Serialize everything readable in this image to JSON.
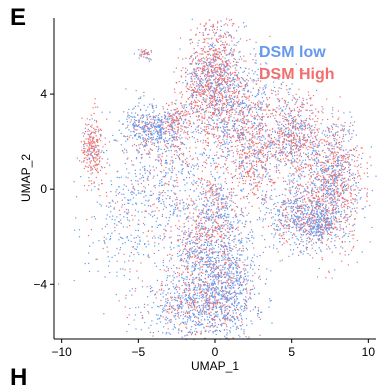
{
  "panel_label": "E",
  "next_panel_label_fragment": "H",
  "colors": {
    "low": "#6699ee",
    "high": "#f07070"
  },
  "chart_data": {
    "type": "scatter",
    "title": "",
    "xlabel": "UMAP_1",
    "ylabel": "UMAP_2",
    "xlim": [
      -10.5,
      10.5
    ],
    "ylim": [
      -6.3,
      7.2
    ],
    "xticks": [
      -10,
      -5,
      0,
      5,
      10
    ],
    "yticks": [
      -4,
      0,
      4
    ],
    "xtick_labels": [
      "−10",
      "−5",
      "0",
      "5",
      "10"
    ],
    "ytick_labels": [
      "−4",
      "0",
      "4"
    ],
    "grid": false,
    "legend_position": "top-right",
    "series": [
      {
        "name": "DSM low",
        "color": "#6699ee"
      },
      {
        "name": "DSM High",
        "color": "#f07070"
      }
    ],
    "clusters": [
      {
        "cx": -8.0,
        "cy": 1.8,
        "sx": 0.35,
        "sy": 0.7,
        "n": 260,
        "mix": 0.85
      },
      {
        "cx": -4.3,
        "cy": 2.6,
        "sx": 0.9,
        "sy": 0.45,
        "n": 400,
        "mix": 0.2
      },
      {
        "cx": -2.6,
        "cy": 2.8,
        "sx": 0.5,
        "sy": 0.5,
        "n": 160,
        "mix": 0.8
      },
      {
        "cx": -4.6,
        "cy": 5.7,
        "sx": 0.25,
        "sy": 0.12,
        "n": 40,
        "mix": 0.5
      },
      {
        "cx": -5.5,
        "cy": -1.2,
        "sx": 1.6,
        "sy": 1.5,
        "n": 350,
        "mix": 0.25
      },
      {
        "cx": -3.2,
        "cy": 0.8,
        "sx": 1.3,
        "sy": 1.2,
        "n": 350,
        "mix": 0.3
      },
      {
        "cx": -1.4,
        "cy": -2.5,
        "sx": 1.0,
        "sy": 1.5,
        "n": 500,
        "mix": 0.5
      },
      {
        "cx": 0.7,
        "cy": -4.0,
        "sx": 1.1,
        "sy": 1.3,
        "n": 900,
        "mix": 0.25
      },
      {
        "cx": -1.6,
        "cy": -4.9,
        "sx": 1.6,
        "sy": 0.7,
        "n": 600,
        "mix": 0.3
      },
      {
        "cx": 0.2,
        "cy": -1.0,
        "sx": 0.8,
        "sy": 1.4,
        "n": 500,
        "mix": 0.5
      },
      {
        "cx": 0.0,
        "cy": 4.7,
        "sx": 0.8,
        "sy": 1.4,
        "n": 900,
        "mix": 0.65
      },
      {
        "cx": 1.6,
        "cy": 3.4,
        "sx": 1.2,
        "sy": 1.1,
        "n": 700,
        "mix": 0.45
      },
      {
        "cx": -1.2,
        "cy": 4.3,
        "sx": 0.6,
        "sy": 0.7,
        "n": 200,
        "mix": 0.6
      },
      {
        "cx": 2.4,
        "cy": 1.2,
        "sx": 0.6,
        "sy": 1.0,
        "n": 300,
        "mix": 0.7
      },
      {
        "cx": 4.9,
        "cy": 2.2,
        "sx": 1.0,
        "sy": 1.0,
        "n": 700,
        "mix": 0.6
      },
      {
        "cx": 7.6,
        "cy": 0.3,
        "sx": 1.0,
        "sy": 1.3,
        "n": 1100,
        "mix": 0.55
      },
      {
        "cx": 5.2,
        "cy": -1.1,
        "sx": 1.1,
        "sy": 0.7,
        "n": 500,
        "mix": 0.4
      },
      {
        "cx": 6.8,
        "cy": -1.5,
        "sx": 0.6,
        "sy": 0.4,
        "n": 220,
        "mix": 0.15
      }
    ]
  }
}
